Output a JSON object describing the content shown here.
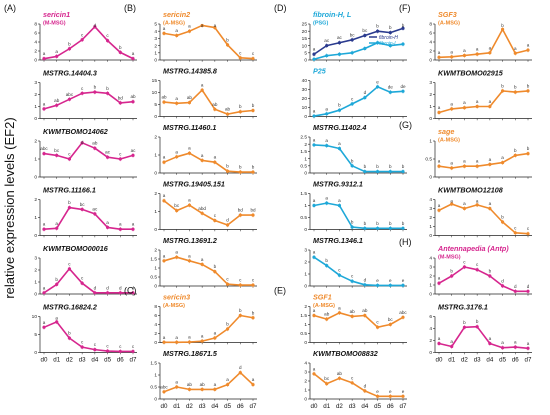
{
  "y_axis_title": "relative expression levels (EF2)",
  "x_categories": [
    "d0",
    "d1",
    "d2",
    "d3",
    "d4",
    "d5",
    "d6",
    "d7"
  ],
  "colors": {
    "magenta": "#d6268e",
    "orange": "#ef8a2c",
    "cyan": "#1ea8d8",
    "navy": "#2a3a8e"
  },
  "chart_data": [
    {
      "col": 0,
      "row": 0,
      "type": "line",
      "panel_letter": "(A)",
      "title": "sericin1",
      "subtitle": "(M-MSG)",
      "title_color": "magenta",
      "ylim": [
        0,
        8
      ],
      "yticks": [
        0,
        2,
        4,
        6,
        8
      ],
      "series": [
        {
          "color": "magenta",
          "values": [
            0.3,
            0.8,
            2.5,
            4.5,
            7.4,
            4.3,
            1.7,
            0.3
          ],
          "letters": [
            "a",
            "a",
            "b",
            "c",
            "d",
            "c",
            "b",
            "a"
          ]
        }
      ]
    },
    {
      "col": 0,
      "row": 1,
      "type": "line",
      "title": "MSTRG.14404.3",
      "title_color": "black",
      "ylim": [
        0,
        3
      ],
      "yticks": [
        0,
        1,
        2,
        3
      ],
      "series": [
        {
          "color": "magenta",
          "values": [
            0.8,
            1.1,
            1.6,
            2.1,
            2.2,
            2.1,
            1.3,
            1.4
          ],
          "letters": [
            "a",
            "ab",
            "abc",
            "c",
            "b",
            "b",
            "bd",
            "ab"
          ]
        }
      ]
    },
    {
      "col": 0,
      "row": 2,
      "type": "line",
      "title": "KWMTBOMO14062",
      "title_color": "black",
      "ylim": [
        0,
        2
      ],
      "yticks": [
        0,
        1,
        2
      ],
      "series": [
        {
          "color": "magenta",
          "values": [
            1.3,
            1.2,
            1.0,
            1.9,
            1.6,
            1.1,
            1.0,
            1.2
          ],
          "letters": [
            "abc",
            "bc",
            "c",
            "d",
            "ab",
            "ac",
            "c",
            "ac"
          ]
        }
      ]
    },
    {
      "col": 0,
      "row": 3,
      "type": "line",
      "title": "MSTRG.11166.1",
      "title_color": "black",
      "ylim": [
        0,
        2
      ],
      "yticks": [
        0,
        1,
        2
      ],
      "series": [
        {
          "color": "magenta",
          "values": [
            0.35,
            0.4,
            1.55,
            1.45,
            1.2,
            0.45,
            0.35,
            0.35
          ],
          "letters": [
            "a",
            "a",
            "b",
            "bc",
            "ac",
            "a",
            "a",
            "a"
          ]
        }
      ]
    },
    {
      "col": 0,
      "row": 4,
      "type": "line",
      "title": "KWMTBOMO00016",
      "title_color": "black",
      "ylim": [
        0,
        3
      ],
      "yticks": [
        0,
        1,
        2,
        3
      ],
      "series": [
        {
          "color": "magenta",
          "values": [
            0.1,
            0.8,
            2.1,
            0.9,
            0.1,
            0.1,
            0.1,
            0.1
          ],
          "letters": [
            "a",
            "b",
            "c",
            "c",
            "d",
            "d",
            "d",
            "d"
          ]
        }
      ]
    },
    {
      "col": 0,
      "row": 5,
      "type": "line",
      "title": "MSTRG.16824.2",
      "title_color": "black",
      "ylim": [
        0,
        10
      ],
      "yticks": [
        0,
        5,
        10
      ],
      "series": [
        {
          "color": "magenta",
          "values": [
            7.0,
            8.5,
            4.0,
            1.5,
            0.8,
            0.4,
            0.3,
            0.3
          ],
          "letters": [
            "a",
            "a",
            "b",
            "c",
            "c",
            "c",
            "c",
            "c"
          ]
        }
      ]
    },
    {
      "col": 1,
      "row": 0,
      "type": "line",
      "panel_letter": "(B)",
      "title": "sericin2",
      "subtitle": "(A-MSG)",
      "title_color": "orange",
      "ylim": [
        0,
        5
      ],
      "yticks": [
        0,
        1,
        2,
        3,
        4,
        5
      ],
      "series": [
        {
          "color": "orange",
          "values": [
            3.7,
            3.4,
            4.0,
            4.8,
            4.5,
            2.1,
            0.3,
            0.2
          ],
          "letters": [
            "a",
            "a",
            "a",
            "a",
            "a",
            "b",
            "c",
            "c"
          ]
        }
      ]
    },
    {
      "col": 1,
      "row": 1,
      "type": "line",
      "title": "MSTRG.14385.8",
      "title_color": "black",
      "ylim": [
        0,
        15
      ],
      "yticks": [
        0,
        5,
        10,
        15
      ],
      "series": [
        {
          "color": "orange",
          "values": [
            6.0,
            5.5,
            5.8,
            11.0,
            3.0,
            1.0,
            2.0,
            2.5
          ],
          "letters": [
            "ab",
            "a",
            "ab",
            "a",
            "ab",
            "ab",
            "b",
            "b"
          ]
        }
      ]
    },
    {
      "col": 1,
      "row": 2,
      "type": "line",
      "title": "MSTRG.11460.1",
      "title_color": "black",
      "ylim": [
        0,
        2
      ],
      "yticks": [
        0,
        1,
        2
      ],
      "series": [
        {
          "color": "orange",
          "values": [
            0.6,
            0.9,
            1.1,
            0.7,
            0.6,
            0.1,
            0.05,
            0.05
          ],
          "letters": [
            "a",
            "a",
            "a",
            "a",
            "a",
            "b",
            "b",
            "b"
          ]
        }
      ]
    },
    {
      "col": 1,
      "row": 3,
      "type": "line",
      "title": "MSTRG.19405.151",
      "title_color": "black",
      "ylim": [
        0,
        2
      ],
      "yticks": [
        0,
        1,
        2
      ],
      "series": [
        {
          "color": "orange",
          "values": [
            1.6,
            1.05,
            1.35,
            0.9,
            0.5,
            0.25,
            0.8,
            0.8
          ],
          "letters": [
            "a",
            "bc",
            "a",
            "abd",
            "c",
            "d",
            "bd",
            "bd"
          ]
        }
      ]
    },
    {
      "col": 1,
      "row": 4,
      "type": "line",
      "title": "MSTRG.13691.2",
      "title_color": "black",
      "ylim": [
        0,
        2
      ],
      "yticks": [
        0,
        0.5,
        1,
        1.5,
        2
      ],
      "series": [
        {
          "color": "orange",
          "values": [
            1.4,
            1.6,
            1.4,
            1.2,
            0.8,
            0.1,
            0.05,
            0.05
          ],
          "letters": [
            "a",
            "a",
            "a",
            "a",
            "b",
            "c",
            "c",
            "c"
          ]
        }
      ]
    },
    {
      "col": 1,
      "row": 5,
      "type": "line",
      "panel_letter": "(C)",
      "title": "sericin3",
      "subtitle": "(A-MSG)",
      "title_color": "orange",
      "ylim": [
        0,
        8
      ],
      "yticks": [
        0,
        2,
        4,
        6,
        8
      ],
      "series": [
        {
          "color": "orange",
          "values": [
            0.05,
            0.05,
            0.1,
            0.3,
            1.0,
            3.0,
            6.0,
            5.5
          ],
          "letters": [
            "a",
            "a",
            "a",
            "a",
            "a",
            "b",
            "b",
            "b"
          ]
        }
      ]
    },
    {
      "col": 1,
      "row": 6,
      "type": "line",
      "title": "MSTRG.18671.5",
      "title_color": "black",
      "ylim": [
        0,
        1.5
      ],
      "yticks": [
        0,
        0.5,
        1,
        1.5
      ],
      "series": [
        {
          "color": "orange",
          "values": [
            0.3,
            0.5,
            0.4,
            0.4,
            0.4,
            0.6,
            1.1,
            0.6
          ],
          "letters": [
            "abc",
            "a",
            "ab",
            "ab",
            "a",
            "a",
            "d",
            "a"
          ]
        }
      ]
    },
    {
      "col": 2,
      "row": 0,
      "type": "line",
      "panel_letter": "(D)",
      "title": "fibroin-H, L",
      "subtitle": "(PSG)",
      "title_color": "cyan",
      "ylim": [
        0,
        25
      ],
      "yticks": [
        0,
        5,
        10,
        15,
        20,
        25
      ],
      "legend": [
        "fibroin-H",
        "fibroin-L"
      ],
      "series": [
        {
          "name": "fibroin-H",
          "color": "navy",
          "values": [
            4,
            10,
            12,
            14,
            17,
            20,
            19,
            22
          ],
          "letters": [
            "a",
            "ac",
            "ac",
            "bc",
            "bc",
            "b",
            "b",
            "b"
          ]
        },
        {
          "name": "fibroin-L",
          "color": "cyan",
          "values": [
            0.5,
            3,
            4,
            5,
            8,
            12,
            10,
            11
          ],
          "letters": [
            "",
            "",
            "",
            "",
            "",
            "",
            "",
            ""
          ]
        }
      ]
    },
    {
      "col": 2,
      "row": 1,
      "type": "line",
      "title": "P25",
      "title_color": "cyan",
      "ylim": [
        0,
        40
      ],
      "yticks": [
        0,
        10,
        20,
        30,
        40
      ],
      "series": [
        {
          "color": "cyan",
          "values": [
            0.5,
            3,
            7,
            14,
            21,
            33,
            27,
            28
          ],
          "letters": [
            "a",
            "a",
            "b",
            "c",
            "d",
            "e",
            "de",
            "de"
          ]
        }
      ]
    },
    {
      "col": 2,
      "row": 2,
      "type": "line",
      "title": "MSTRG.11402.4",
      "title_color": "black",
      "ylim": [
        0,
        2.5
      ],
      "yticks": [
        0,
        0.5,
        1,
        1.5,
        2,
        2.5
      ],
      "series": [
        {
          "color": "cyan",
          "values": [
            1.95,
            1.9,
            1.7,
            0.5,
            0.1,
            0.1,
            0.1,
            0.1
          ],
          "letters": [
            "a",
            "a",
            "a",
            "b",
            "b",
            "b",
            "b",
            "b"
          ]
        }
      ]
    },
    {
      "col": 2,
      "row": 3,
      "type": "line",
      "title": "MSTRG.9312.1",
      "title_color": "black",
      "ylim": [
        0,
        1.5
      ],
      "yticks": [
        0,
        0.5,
        1,
        1.5
      ],
      "series": [
        {
          "color": "cyan",
          "values": [
            1.0,
            1.1,
            1.0,
            0.1,
            0.05,
            0.05,
            0.05,
            0.05
          ],
          "letters": [
            "a",
            "a",
            "a",
            "b",
            "b",
            "b",
            "b",
            "b"
          ]
        }
      ]
    },
    {
      "col": 2,
      "row": 4,
      "type": "line",
      "title": "MSTRG.1346.1",
      "title_color": "black",
      "ylim": [
        0,
        3
      ],
      "yticks": [
        0,
        1,
        2,
        3
      ],
      "series": [
        {
          "color": "cyan",
          "values": [
            2.4,
            1.7,
            0.9,
            0.4,
            0.1,
            0.05,
            0.05,
            0.05
          ],
          "letters": [
            "a",
            "b",
            "c",
            "c",
            "d",
            "e",
            "e",
            "e"
          ]
        }
      ]
    },
    {
      "col": 2,
      "row": 5,
      "type": "line",
      "panel_letter": "(E)",
      "title": "SGF1",
      "subtitle": "(A-MSG)",
      "title_color": "orange",
      "ylim": [
        0,
        2
      ],
      "yticks": [
        0,
        0.5,
        1,
        1.5,
        2
      ],
      "series": [
        {
          "color": "orange",
          "values": [
            1.5,
            1.3,
            1.65,
            1.45,
            1.5,
            0.85,
            1.0,
            1.4
          ],
          "letters": [
            "a",
            "ab",
            "a",
            "ab",
            "ab",
            "c",
            "bc",
            "abc"
          ]
        }
      ]
    },
    {
      "col": 2,
      "row": 6,
      "type": "line",
      "title": "KWMTBOMO08832",
      "title_color": "black",
      "ylim": [
        0,
        4
      ],
      "yticks": [
        0,
        1,
        2,
        3,
        4
      ],
      "series": [
        {
          "color": "orange",
          "values": [
            2.8,
            1.7,
            2.3,
            1.8,
            0.9,
            0.3,
            0.3,
            0.3
          ],
          "letters": [
            "a",
            "bc",
            "ab",
            "c",
            "d",
            "e",
            "e",
            "e"
          ]
        }
      ]
    },
    {
      "col": 3,
      "row": 0,
      "type": "line",
      "panel_letter": "(F)",
      "title": "SGF3",
      "subtitle": "(A-MSG)",
      "title_color": "orange",
      "ylim": [
        0,
        8
      ],
      "yticks": [
        0,
        2,
        4,
        6,
        8
      ],
      "series": [
        {
          "color": "orange",
          "values": [
            0.6,
            0.7,
            1.0,
            1.3,
            1.6,
            6.8,
            1.5,
            2.2
          ],
          "letters": [
            "a",
            "a",
            "a",
            "a",
            "a",
            "b",
            "a",
            "a"
          ]
        }
      ]
    },
    {
      "col": 3,
      "row": 1,
      "type": "line",
      "title": "KWMTBOMO02915",
      "title_color": "black",
      "ylim": [
        0,
        3
      ],
      "yticks": [
        0,
        1,
        2,
        3
      ],
      "series": [
        {
          "color": "orange",
          "values": [
            0.5,
            0.8,
            0.9,
            1.0,
            1.0,
            2.3,
            2.2,
            2.3
          ],
          "letters": [
            "a",
            "a",
            "a",
            "a",
            "a",
            "b",
            "b",
            "b"
          ]
        }
      ]
    },
    {
      "col": 3,
      "row": 2,
      "type": "line",
      "panel_letter": "(G)",
      "title": "sage",
      "subtitle": "(A-MSG)",
      "title_color": "orange",
      "ylim": [
        0,
        1
      ],
      "yticks": [
        0,
        0.5,
        1
      ],
      "series": [
        {
          "color": "orange",
          "values": [
            0.3,
            0.25,
            0.3,
            0.3,
            0.35,
            0.4,
            0.6,
            0.65
          ],
          "letters": [
            "a",
            "a",
            "a",
            "a",
            "a",
            "a",
            "b",
            "b"
          ]
        }
      ]
    },
    {
      "col": 3,
      "row": 3,
      "type": "line",
      "title": "KWMTBOMO12108",
      "title_color": "black",
      "ylim": [
        0,
        4
      ],
      "yticks": [
        0,
        1,
        2,
        3,
        4
      ],
      "series": [
        {
          "color": "orange",
          "values": [
            2.8,
            3.5,
            3.0,
            3.4,
            3.0,
            1.5,
            0.3,
            0.2
          ],
          "letters": [
            "a",
            "a",
            "a",
            "a",
            "a",
            "b",
            "c",
            "c"
          ]
        }
      ]
    },
    {
      "col": 3,
      "row": 4,
      "type": "line",
      "panel_letter": "(H)",
      "title": "Antennapedia (Antp)",
      "subtitle": "(M-MSG)",
      "title_color": "magenta",
      "ylim": [
        0,
        4
      ],
      "yticks": [
        0,
        1,
        2,
        3,
        4
      ],
      "series": [
        {
          "color": "magenta",
          "values": [
            1.2,
            2.0,
            3.0,
            2.7,
            2.0,
            0.9,
            0.3,
            0.3
          ],
          "letters": [
            "a",
            "b",
            "c",
            "c",
            "b",
            "d",
            "d",
            "d"
          ]
        }
      ]
    },
    {
      "col": 3,
      "row": 5,
      "type": "line",
      "title": "MSTRG.3176.1",
      "title_color": "black",
      "ylim": [
        0,
        6
      ],
      "yticks": [
        0,
        2,
        4,
        6
      ],
      "series": [
        {
          "color": "magenta",
          "values": [
            1.5,
            1.0,
            4.2,
            4.3,
            1.5,
            0.8,
            0.9,
            0.7
          ],
          "letters": [
            "a",
            "a",
            "b",
            "b",
            "a",
            "a",
            "a",
            "a"
          ]
        }
      ]
    }
  ]
}
